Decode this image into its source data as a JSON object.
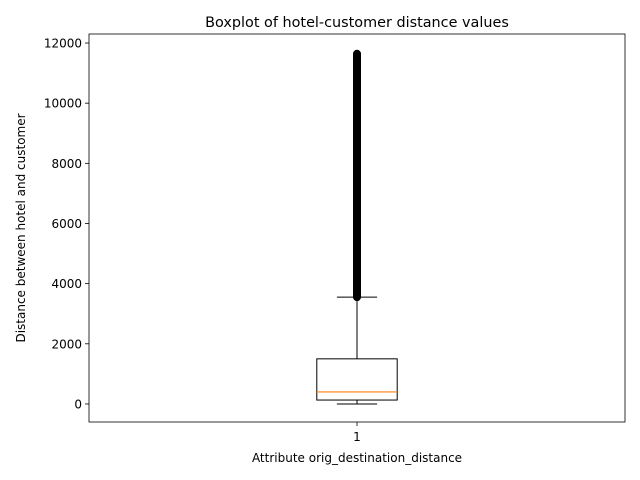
{
  "chart_data": {
    "type": "boxplot",
    "title": "Boxplot of hotel-customer distance values",
    "xlabel": "Attribute orig_destination_distance",
    "ylabel": "Distance between hotel and customer",
    "categories": [
      "1"
    ],
    "ylim": [
      -600,
      12300
    ],
    "yticks": [
      0,
      2000,
      4000,
      6000,
      8000,
      10000,
      12000
    ],
    "xlim": [
      0.5,
      1.5
    ],
    "grid": false,
    "box": {
      "position": 1,
      "whisker_low": 0,
      "q1": 130,
      "median": 400,
      "q3": 1500,
      "whisker_high": 3550,
      "outliers_range": [
        3550,
        11650
      ]
    },
    "colors": {
      "box": "#000000",
      "median": "#ff7f0e",
      "outliers": "#000000"
    }
  }
}
